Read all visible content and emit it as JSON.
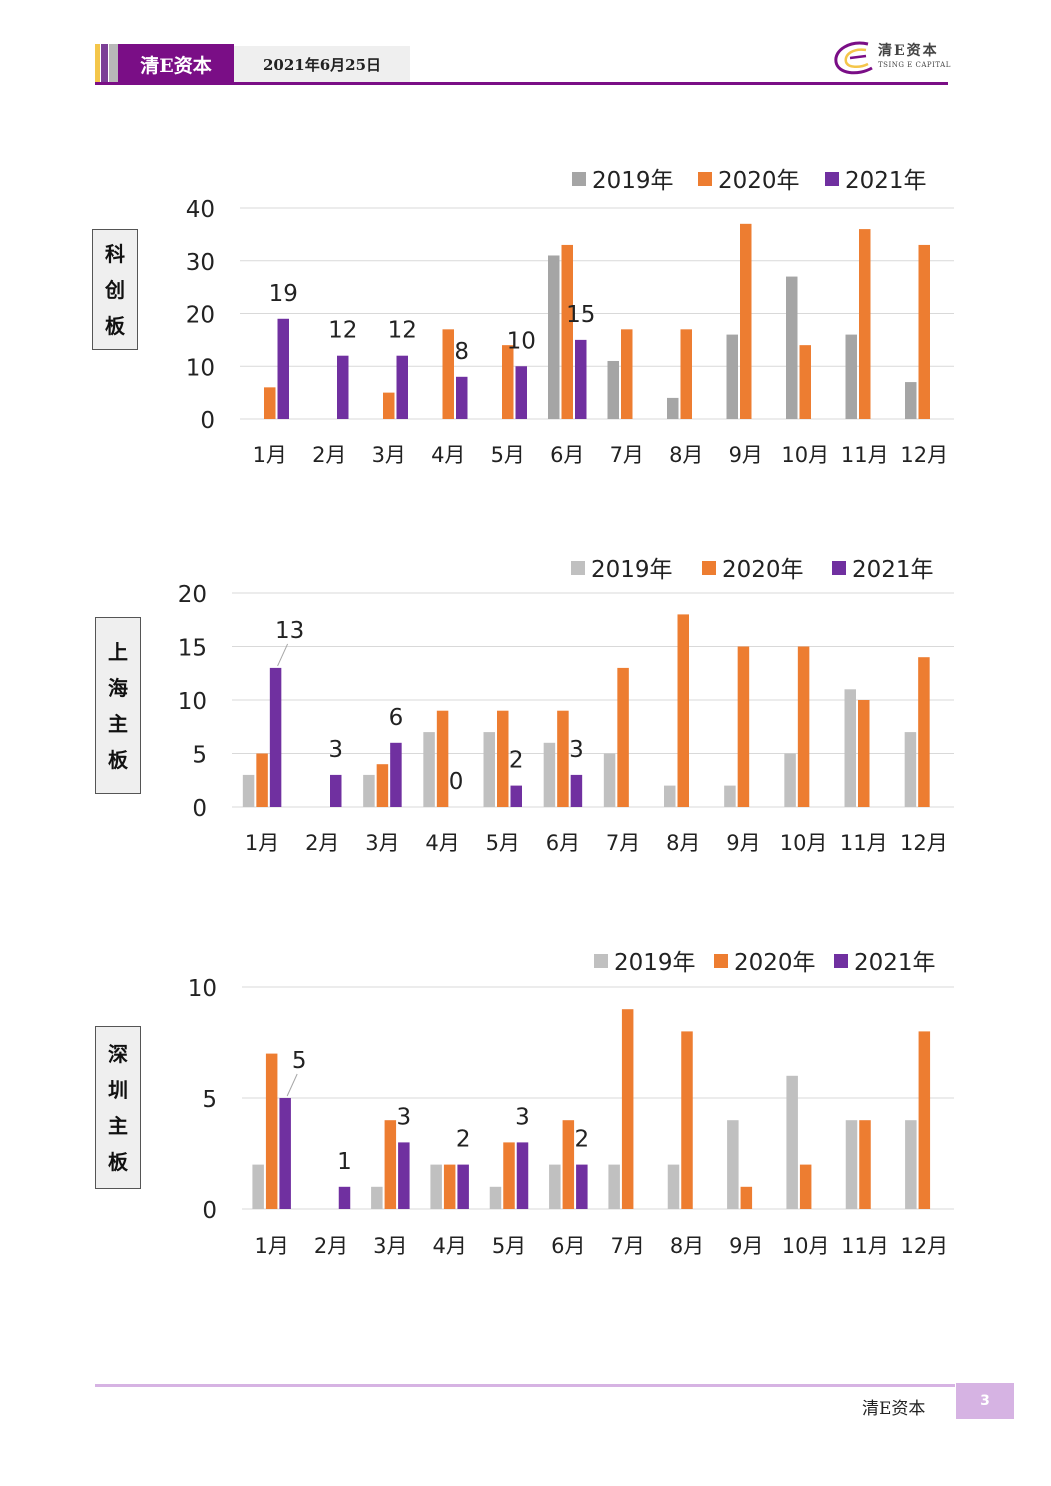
{
  "header": {
    "brand": "清E资本",
    "date": "2021年6月25日",
    "logo_text": "清E资本",
    "logo_sub": "TSING E CAPITAL"
  },
  "footer": {
    "brand": "清E资本",
    "page": "3"
  },
  "colors": {
    "purple_brand": "#7a0e86",
    "series_2019_first": "#a5a5a5",
    "series_2019": "#c0c0c0",
    "series_2020": "#ed7d31",
    "series_2021": "#7030a0"
  },
  "side_labels": [
    [
      "科",
      "创",
      "板"
    ],
    [
      "上",
      "海",
      "主",
      "板"
    ],
    [
      "深",
      "圳",
      "主",
      "板"
    ]
  ],
  "chart_data": [
    {
      "type": "bar",
      "categories": [
        "1月",
        "2月",
        "3月",
        "4月",
        "5月",
        "6月",
        "7月",
        "8月",
        "9月",
        "10月",
        "11月",
        "12月"
      ],
      "series": [
        {
          "name": "2019年",
          "values": [
            null,
            null,
            null,
            null,
            null,
            31,
            11,
            4,
            16,
            27,
            16,
            7
          ]
        },
        {
          "name": "2020年",
          "values": [
            6,
            null,
            5,
            17,
            14,
            33,
            17,
            17,
            37,
            14,
            36,
            33
          ]
        },
        {
          "name": "2021年",
          "values": [
            19,
            12,
            12,
            8,
            10,
            15,
            null,
            null,
            null,
            null,
            null,
            null
          ]
        }
      ],
      "data_labels": [
        "19",
        "12",
        "12",
        "8",
        "10",
        "15"
      ],
      "yticks": [
        "0",
        "10",
        "20",
        "30",
        "40"
      ],
      "ylim": [
        0,
        40
      ],
      "legend": "top-right",
      "grid": true
    },
    {
      "type": "bar",
      "categories": [
        "1月",
        "2月",
        "3月",
        "4月",
        "5月",
        "6月",
        "7月",
        "8月",
        "9月",
        "10月",
        "11月",
        "12月"
      ],
      "series": [
        {
          "name": "2019年",
          "values": [
            3,
            null,
            3,
            7,
            7,
            6,
            5,
            2,
            2,
            5,
            11,
            7
          ]
        },
        {
          "name": "2020年",
          "values": [
            5,
            null,
            4,
            9,
            9,
            9,
            13,
            18,
            15,
            15,
            10,
            14
          ]
        },
        {
          "name": "2021年",
          "values": [
            13,
            3,
            6,
            0,
            2,
            3,
            null,
            null,
            null,
            null,
            null,
            null
          ]
        }
      ],
      "data_labels": [
        "13",
        "3",
        "6",
        "0",
        "2",
        "3"
      ],
      "yticks": [
        "0",
        "5",
        "10",
        "15",
        "20"
      ],
      "ylim": [
        0,
        20
      ],
      "legend": "top-right",
      "grid": true
    },
    {
      "type": "bar",
      "categories": [
        "1月",
        "2月",
        "3月",
        "4月",
        "5月",
        "6月",
        "7月",
        "8月",
        "9月",
        "10月",
        "11月",
        "12月"
      ],
      "series": [
        {
          "name": "2019年",
          "values": [
            2,
            null,
            1,
            2,
            1,
            2,
            2,
            2,
            4,
            6,
            4,
            4
          ]
        },
        {
          "name": "2020年",
          "values": [
            7,
            null,
            4,
            2,
            3,
            4,
            9,
            8,
            1,
            2,
            4,
            8
          ]
        },
        {
          "name": "2021年",
          "values": [
            5,
            1,
            3,
            2,
            3,
            2,
            null,
            null,
            null,
            null,
            null,
            null
          ]
        }
      ],
      "data_labels": [
        "5",
        "1",
        "3",
        "2",
        "3",
        "2"
      ],
      "yticks": [
        "0",
        "5",
        "10"
      ],
      "ylim": [
        0,
        10
      ],
      "legend": "top-right",
      "grid": true
    }
  ]
}
